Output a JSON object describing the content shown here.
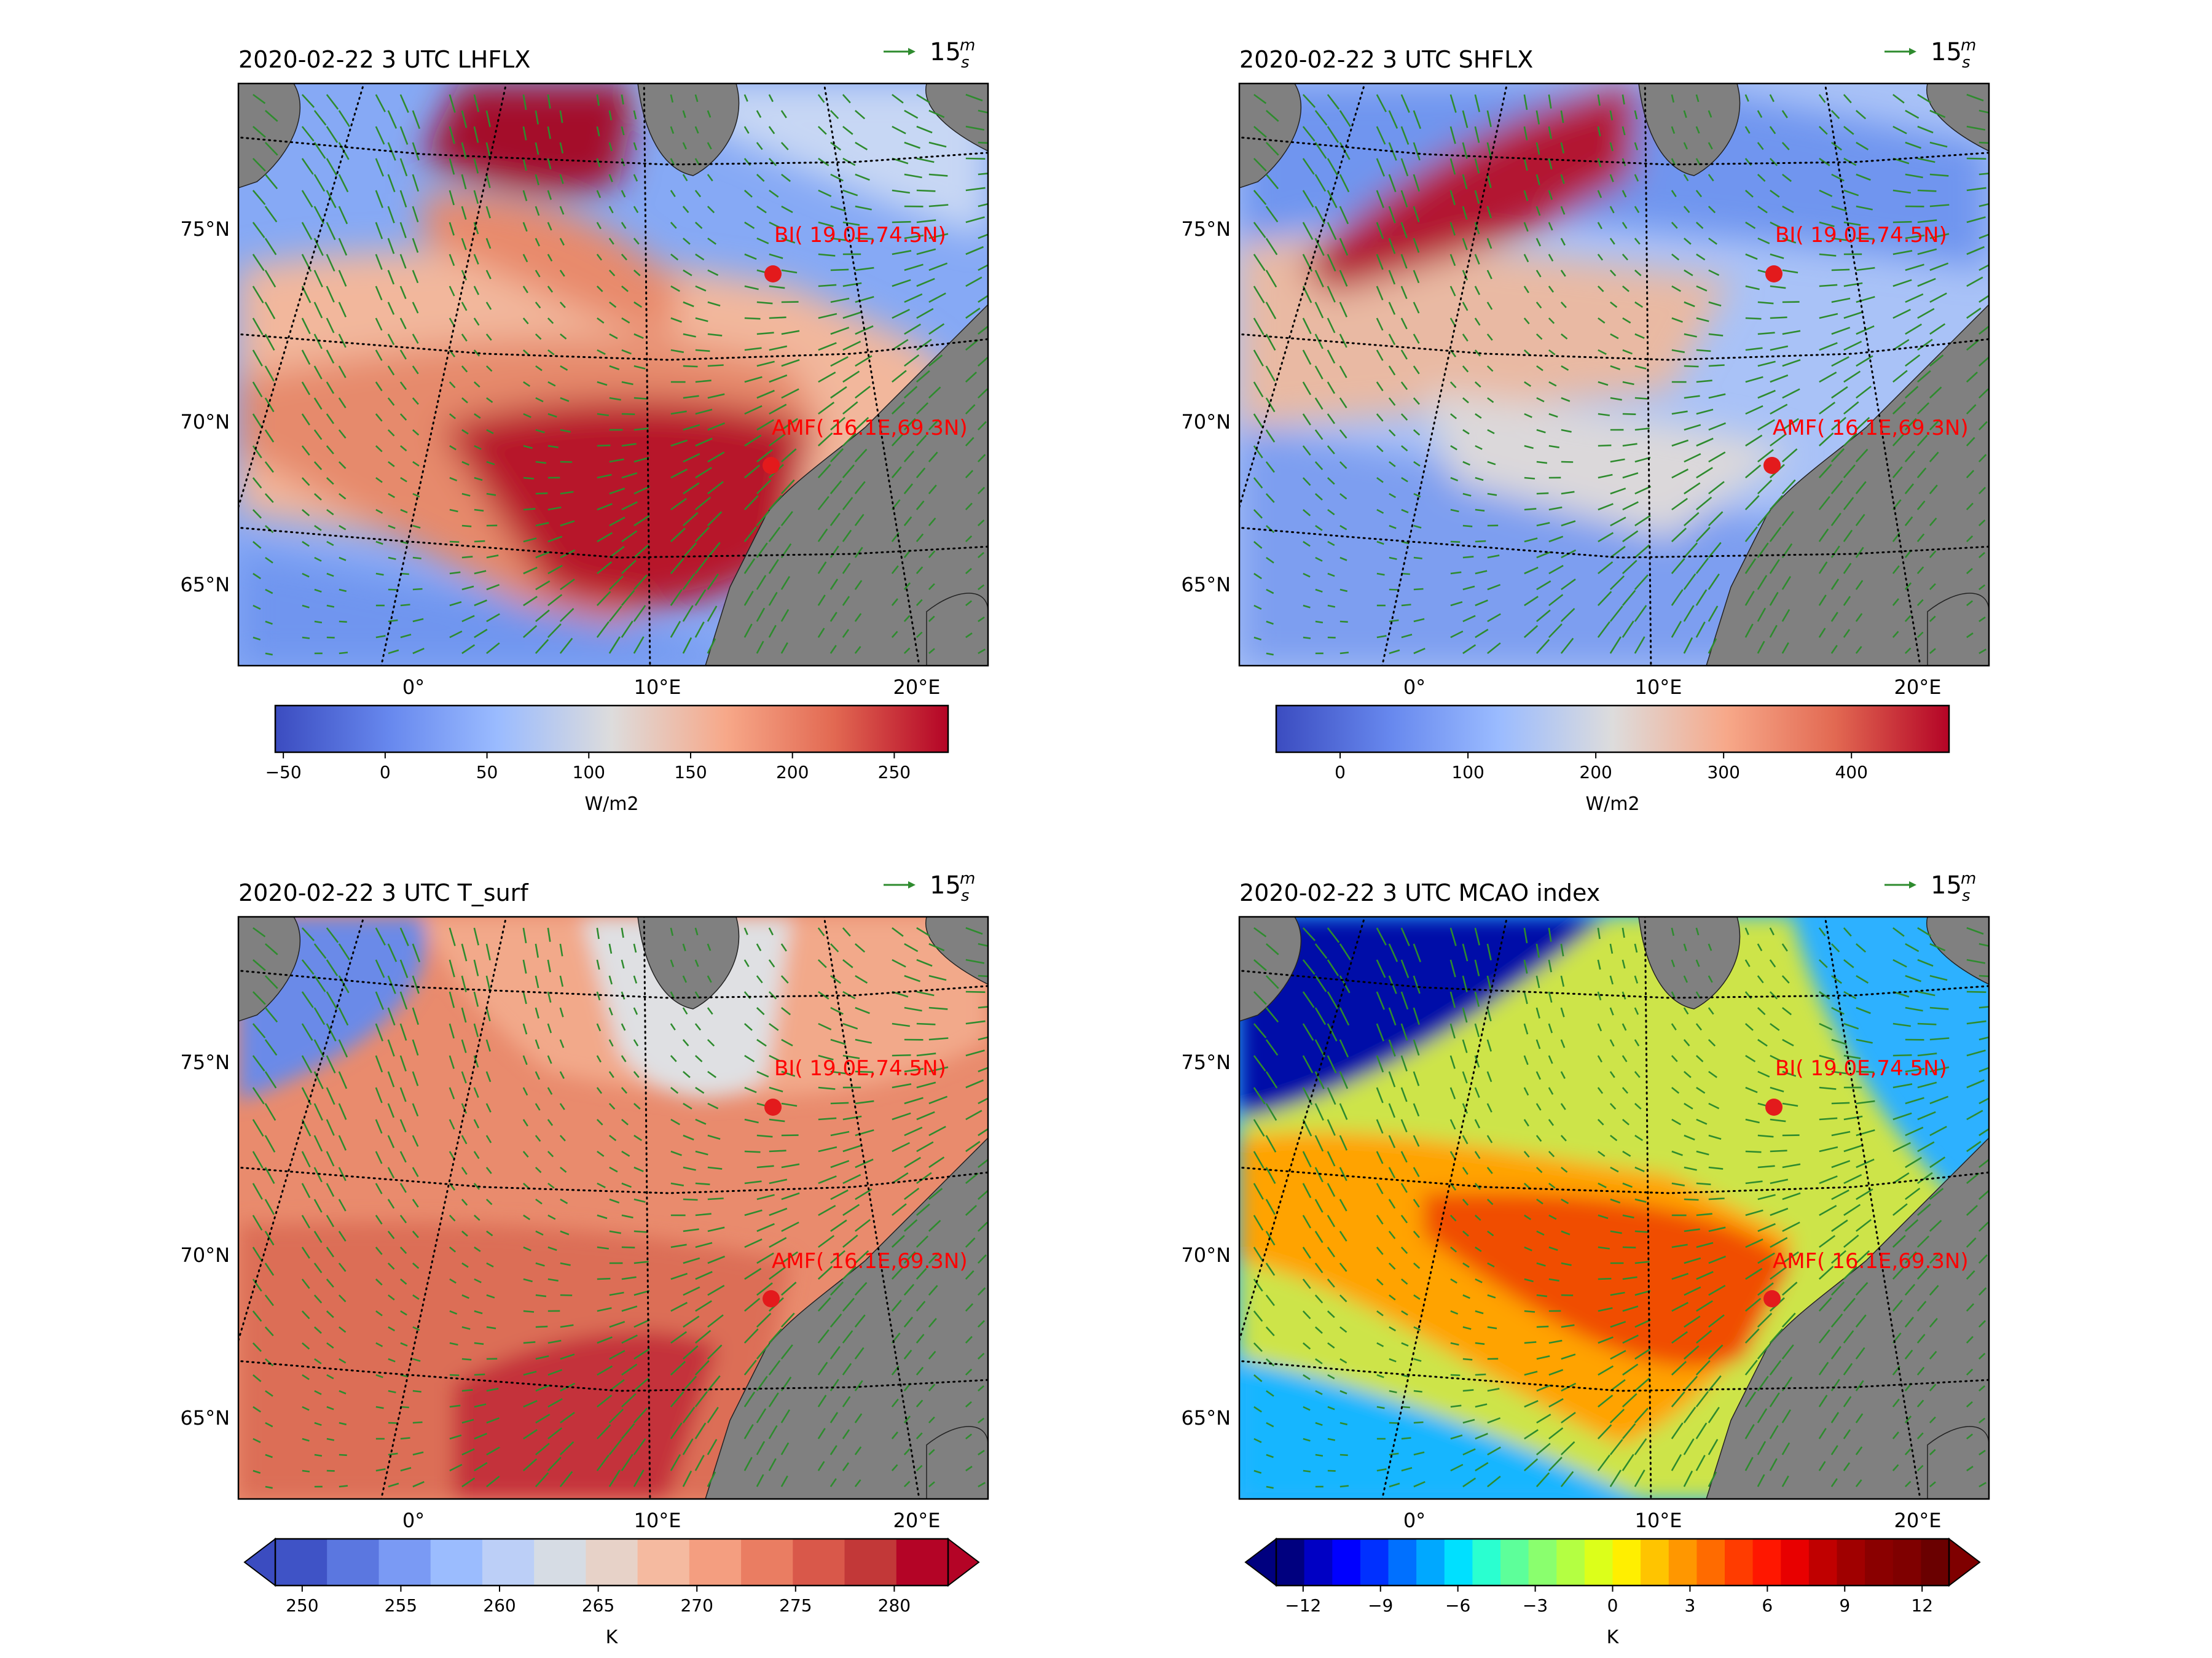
{
  "figure": {
    "wind_key_label": "15",
    "wind_key_unit_top": "m",
    "wind_key_unit_bottom": "s",
    "colors": {
      "land": "#808080",
      "wind_arrows": "#2e8b2e",
      "station_marker": "#e31a1c",
      "station_label": "#ff0000",
      "graticule": "#000000"
    }
  },
  "panels": [
    {
      "id": "lhflx",
      "title": "2020-02-22 3 UTC LHFLX",
      "colormap": "coolwarm",
      "colorbar": {
        "label": "W/m2",
        "ticks": [
          "−50",
          "0",
          "50",
          "100",
          "150",
          "200",
          "250"
        ],
        "extend": "none",
        "discrete_levels": 0
      }
    },
    {
      "id": "shflx",
      "title": "2020-02-22 3 UTC SHFLX",
      "colormap": "coolwarm",
      "colorbar": {
        "label": "W/m2",
        "ticks": [
          "0",
          "100",
          "200",
          "300",
          "400"
        ],
        "extend": "none",
        "discrete_levels": 0
      }
    },
    {
      "id": "tsurf",
      "title": "2020-02-22 3 UTC T_surf",
      "colormap": "coolwarm",
      "colorbar": {
        "label": "K",
        "ticks": [
          "250",
          "255",
          "260",
          "265",
          "270",
          "275",
          "280"
        ],
        "extend": "both",
        "discrete_levels": 13
      }
    },
    {
      "id": "mcao",
      "title": "2020-02-22 3 UTC MCAO index",
      "colormap": "jet",
      "colorbar": {
        "label": "K",
        "ticks": [
          "−12",
          "−9",
          "−6",
          "−3",
          "0",
          "3",
          "6",
          "9",
          "12"
        ],
        "extend": "both",
        "discrete_levels": 24
      }
    }
  ],
  "map_labels": {
    "lat_labels": [
      "75°N",
      "70°N",
      "65°N"
    ],
    "lon_labels": [
      "0°",
      "10°E",
      "20°E"
    ],
    "stations": [
      {
        "name": "BI",
        "label": "BI( 19.0E,74.5N)"
      },
      {
        "name": "AMF",
        "label": "AMF( 16.1E,69.3N)"
      }
    ]
  }
}
